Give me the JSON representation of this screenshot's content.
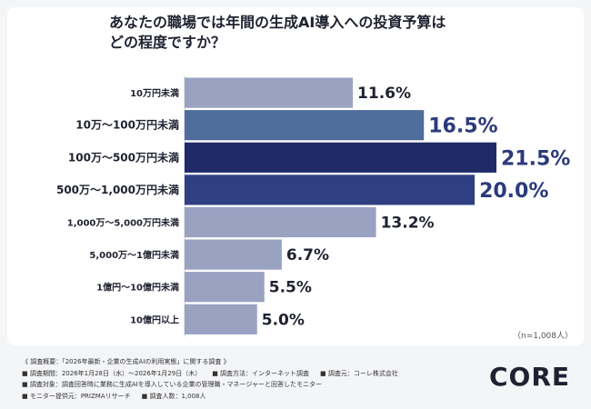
{
  "title_lines": [
    "あなたの職場では年間の生成AI導入への投資予算は",
    "どの程度ですか？"
  ],
  "sample_size": "（n=1,008人）",
  "footer": {
    "heading": "《 調査概要：「2026年最新・企業の生成AIの利用実態」に関する調査 》",
    "period": "■ 調査期間：2026年1月28日（水）〜2026年1月29日（木）",
    "method": "■ 調査方法：インターネット調査",
    "organizer": "■ 調査元：コーレ株式会社",
    "target": "■ 調査対象：調査回答時に業務に生成AIを導入している企業の管理職・マネージャーと回答したモニター",
    "provider": "■ モニター提供元：PRIZMAリサーチ",
    "count": "■ 調査人数：1,008人"
  },
  "logo_text": "CORE",
  "colors": {
    "light": "#9aa2c2",
    "mid": "#4f6d9a",
    "dark": "#1f2a66",
    "darker": "#2f3f82",
    "label_dark": "#2b3a7a",
    "label_light": "#1f2230"
  },
  "chart_data": {
    "type": "bar",
    "orientation": "horizontal",
    "title": "あなたの職場では年間の生成AI導入への投資予算はどの程度ですか？",
    "categories": [
      "10万円未満",
      "10万〜100万円未満",
      "100万〜500万円未満",
      "500万〜1,000万円未満",
      "1,000万〜5,000万円未満",
      "5,000万〜1億円未満",
      "1億円〜10億円未満",
      "10億円以上"
    ],
    "values": [
      11.6,
      16.5,
      21.5,
      20.0,
      13.2,
      6.7,
      5.5,
      5.0
    ],
    "value_labels": [
      "11.6%",
      "16.5%",
      "21.5%",
      "20.0%",
      "13.2%",
      "6.7%",
      "5.5%",
      "5.0%"
    ],
    "bar_colors": [
      "light",
      "mid",
      "dark",
      "darker",
      "light",
      "light",
      "light",
      "light"
    ],
    "label_emphasis": [
      false,
      true,
      true,
      true,
      false,
      false,
      false,
      false
    ],
    "unit": "%",
    "xlim": [
      0,
      21.5
    ]
  }
}
